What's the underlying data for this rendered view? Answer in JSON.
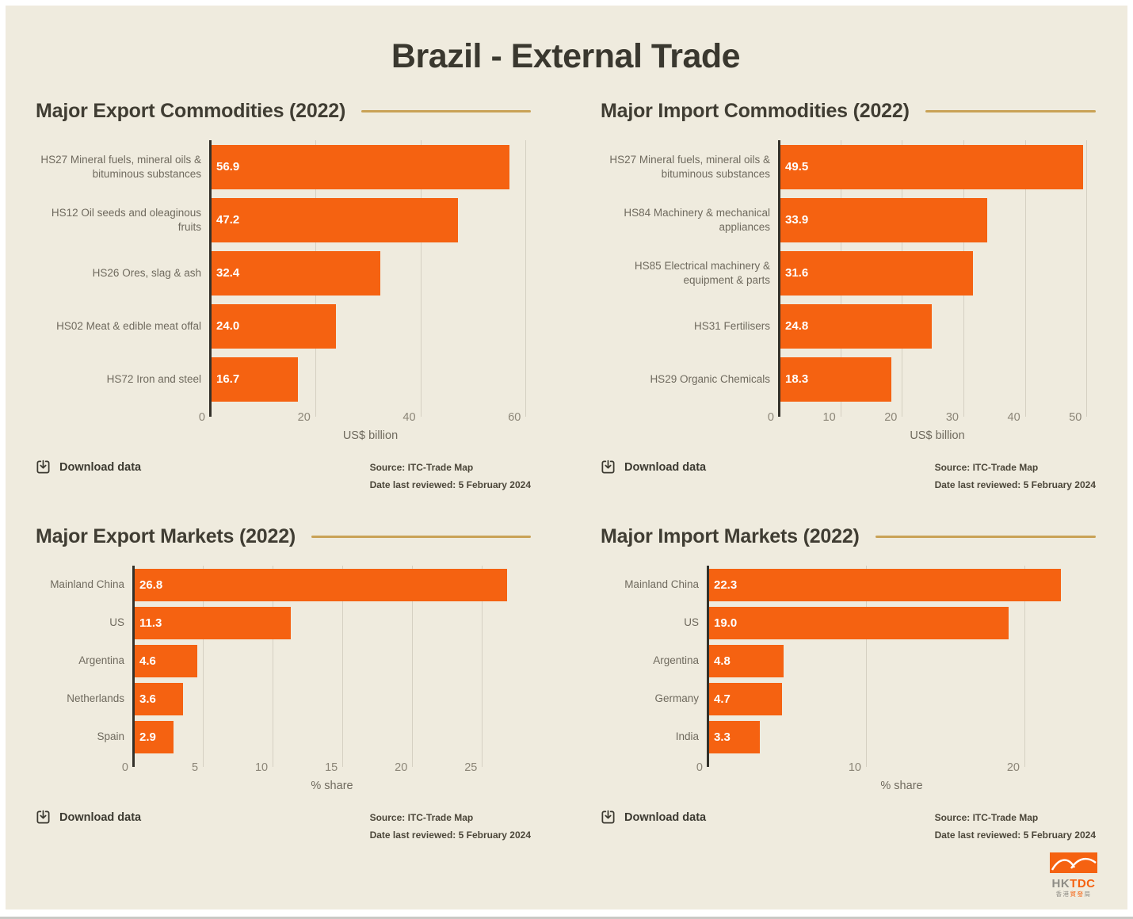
{
  "page": {
    "title": "Brazil - External Trade",
    "download_label": "Download data",
    "source_line1": "Source: ITC-Trade Map",
    "source_line2": "Date last reviewed: 5 February 2024"
  },
  "colors": {
    "background": "#efebde",
    "bar": "#f56211",
    "header_rule": "#c9a256",
    "axis_line": "#33312a",
    "gridline": "#d5d0c2",
    "title_text": "#3a382f",
    "category_text": "#6f6a5e",
    "tick_text": "#8b8577",
    "bar_value_text": "#ffffff"
  },
  "logo": {
    "hk": "HK",
    "tdc": "TDC",
    "chinese_prefix": "香港",
    "chinese_mid": "貿發",
    "chinese_suffix": "局"
  },
  "chart_data": [
    {
      "type": "bar",
      "orientation": "horizontal",
      "title": "Major Export Commodities (2022)",
      "categories": [
        "HS27 Mineral fuels, mineral oils & bituminous substances",
        "HS12 Oil seeds and oleaginous fruits",
        "HS26 Ores, slag & ash",
        "HS02 Meat & edible meat offal",
        "HS72 Iron and steel"
      ],
      "values": [
        56.9,
        47.2,
        32.4,
        24.0,
        16.7
      ],
      "value_labels": [
        "56.9",
        "47.2",
        "32.4",
        "24.0",
        "16.7"
      ],
      "xlabel": "US$ billion",
      "ticks": [
        0,
        20,
        40,
        60
      ],
      "xlim": [
        0,
        61
      ],
      "grid": true,
      "legend": false
    },
    {
      "type": "bar",
      "orientation": "horizontal",
      "title": "Major Import Commodities (2022)",
      "categories": [
        "HS27 Mineral fuels, mineral oils & bituminous substances",
        "HS84 Machinery & mechanical appliances",
        "HS85 Electrical machinery & equipment & parts",
        "HS31 Fertilisers",
        "HS29 Organic Chemicals"
      ],
      "values": [
        49.5,
        33.9,
        31.6,
        24.8,
        18.3
      ],
      "value_labels": [
        "49.5",
        "33.9",
        "31.6",
        "24.8",
        "18.3"
      ],
      "xlabel": "US$ billion",
      "ticks": [
        0,
        10,
        20,
        30,
        40,
        50
      ],
      "xlim": [
        0,
        51.5
      ],
      "grid": true,
      "legend": false
    },
    {
      "type": "bar",
      "orientation": "horizontal",
      "title": "Major Export Markets (2022)",
      "categories": [
        "Mainland China",
        "US",
        "Argentina",
        "Netherlands",
        "Spain"
      ],
      "values": [
        26.8,
        11.3,
        4.6,
        3.6,
        2.9
      ],
      "value_labels": [
        "26.8",
        "11.3",
        "4.6",
        "3.6",
        "2.9"
      ],
      "xlabel": "% share",
      "ticks": [
        0,
        5,
        10,
        15,
        20,
        25
      ],
      "xlim": [
        0,
        28.5
      ],
      "grid": true,
      "legend": false
    },
    {
      "type": "bar",
      "orientation": "horizontal",
      "title": "Major Import Markets (2022)",
      "categories": [
        "Mainland China",
        "US",
        "Argentina",
        "Germany",
        "India"
      ],
      "values": [
        22.3,
        19.0,
        4.8,
        4.7,
        3.3
      ],
      "value_labels": [
        "22.3",
        "19.0",
        "4.8",
        "4.7",
        "3.3"
      ],
      "xlabel": "% share",
      "ticks": [
        0,
        10,
        20
      ],
      "xlim": [
        0,
        24.5
      ],
      "grid": true,
      "legend": false
    }
  ]
}
